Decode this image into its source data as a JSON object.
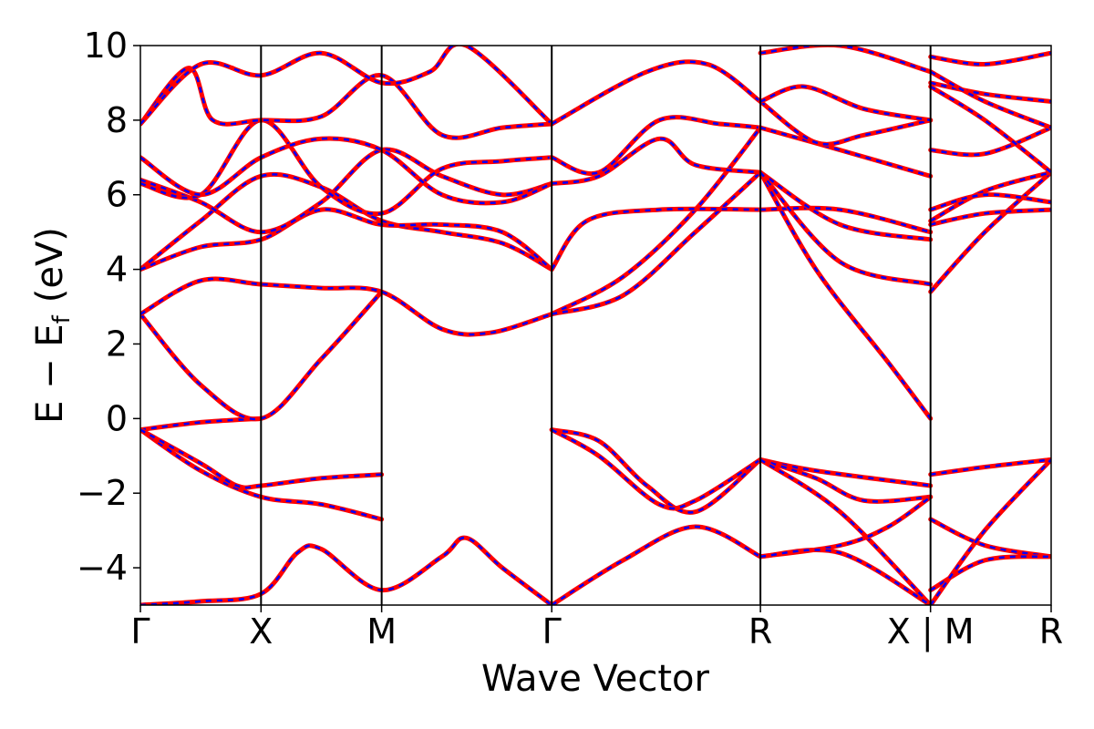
{
  "chart_data": {
    "type": "line",
    "xlabel": "Wave Vector",
    "ylabel": "E − Eₑ (eV)",
    "ylabel_parts": {
      "main": "E − E",
      "sub": "f",
      "unit": "(eV)"
    },
    "ylim": [
      -5,
      10
    ],
    "yticks": [
      -4,
      -2,
      0,
      2,
      4,
      6,
      8,
      10
    ],
    "ytick_labels": [
      "−4",
      "−2",
      "0",
      "2",
      "4",
      "6",
      "8",
      "10"
    ],
    "kpoints": [
      {
        "label": "Γ",
        "x": 0
      },
      {
        "label": "X",
        "x": 1
      },
      {
        "label": "M",
        "x": 2
      },
      {
        "label": "Γ",
        "x": 3.41
      },
      {
        "label": "R",
        "x": 5.14
      },
      {
        "label": "X | M",
        "x": 6.55
      },
      {
        "label": "R",
        "x": 7.55
      }
    ],
    "xlim": [
      0,
      7.55
    ],
    "colors": {
      "series_a": "#ff0000",
      "series_b": "#0000ff",
      "frame": "#000000"
    },
    "series": [
      {
        "values": [
          [
            0,
            -0.3
          ],
          [
            0.5,
            -0.1
          ],
          [
            1,
            0.0
          ]
        ]
      },
      {
        "values": [
          [
            0,
            -0.3
          ],
          [
            0.5,
            -1.4
          ],
          [
            1,
            -2.1
          ],
          [
            1.5,
            -2.3
          ],
          [
            2,
            -2.7
          ]
        ]
      },
      {
        "values": [
          [
            0,
            -0.3
          ],
          [
            0.5,
            -1.2
          ],
          [
            0.8,
            -1.8
          ],
          [
            1,
            -1.8
          ],
          [
            1.5,
            -1.6
          ],
          [
            2,
            -1.5
          ]
        ]
      },
      {
        "values": [
          [
            0,
            -5.0
          ],
          [
            0.5,
            -4.9
          ],
          [
            1,
            -4.7
          ],
          [
            1.3,
            -3.6
          ],
          [
            1.5,
            -3.5
          ],
          [
            2,
            -4.6
          ],
          [
            2.5,
            -3.7
          ],
          [
            2.7,
            -3.2
          ],
          [
            3,
            -4.0
          ],
          [
            3.41,
            -5.0
          ]
        ]
      },
      {
        "values": [
          [
            0,
            2.8
          ],
          [
            0.5,
            0.9
          ],
          [
            1,
            0.0
          ],
          [
            1.5,
            1.6
          ],
          [
            2,
            3.4
          ]
        ]
      },
      {
        "values": [
          [
            0,
            2.8
          ],
          [
            0.5,
            3.7
          ],
          [
            1,
            3.6
          ],
          [
            1.5,
            3.5
          ],
          [
            2,
            3.4
          ],
          [
            2.5,
            2.4
          ],
          [
            2.9,
            2.3
          ],
          [
            3.41,
            2.8
          ]
        ]
      },
      {
        "values": [
          [
            0,
            4.0
          ],
          [
            0.5,
            5.3
          ],
          [
            1,
            6.5
          ],
          [
            1.5,
            6.2
          ],
          [
            2,
            5.3
          ],
          [
            2.5,
            5.0
          ],
          [
            3,
            4.7
          ],
          [
            3.41,
            4.0
          ]
        ]
      },
      {
        "values": [
          [
            0,
            4.0
          ],
          [
            0.5,
            4.6
          ],
          [
            1,
            4.8
          ],
          [
            1.5,
            5.6
          ],
          [
            2,
            5.2
          ],
          [
            2.5,
            5.2
          ],
          [
            3,
            5.0
          ],
          [
            3.41,
            4.0
          ]
        ]
      },
      {
        "values": [
          [
            0,
            6.4
          ],
          [
            0.5,
            5.8
          ],
          [
            1,
            5.0
          ],
          [
            1.5,
            5.8
          ],
          [
            2,
            7.2
          ],
          [
            2.5,
            6.5
          ],
          [
            3,
            6.0
          ],
          [
            3.41,
            6.3
          ]
        ]
      },
      {
        "values": [
          [
            0,
            6.3
          ],
          [
            0.5,
            6.0
          ],
          [
            1,
            8.0
          ],
          [
            1.5,
            6.2
          ],
          [
            2,
            5.5
          ],
          [
            2.5,
            6.7
          ],
          [
            3,
            6.9
          ],
          [
            3.41,
            7.0
          ]
        ]
      },
      {
        "values": [
          [
            0,
            7.0
          ],
          [
            0.5,
            6.0
          ],
          [
            1,
            7.0
          ],
          [
            1.5,
            7.5
          ],
          [
            2,
            7.2
          ],
          [
            2.5,
            6.0
          ],
          [
            3,
            5.8
          ],
          [
            3.41,
            6.3
          ]
        ]
      },
      {
        "values": [
          [
            0,
            7.9
          ],
          [
            0.4,
            9.4
          ],
          [
            0.6,
            8.0
          ],
          [
            1,
            8.0
          ],
          [
            1.5,
            8.1
          ],
          [
            2,
            9.2
          ],
          [
            2.5,
            7.6
          ],
          [
            3,
            7.8
          ],
          [
            3.41,
            7.9
          ]
        ]
      },
      {
        "values": [
          [
            0,
            7.9
          ],
          [
            0.5,
            9.5
          ],
          [
            1,
            9.2
          ],
          [
            1.5,
            9.8
          ],
          [
            2,
            9.0
          ],
          [
            2.4,
            9.3
          ],
          [
            2.7,
            10.0
          ],
          [
            3.41,
            7.9
          ]
        ]
      },
      {
        "values": [
          [
            3.41,
            -0.3
          ],
          [
            3.8,
            -0.6
          ],
          [
            4.2,
            -1.8
          ],
          [
            4.6,
            -2.5
          ],
          [
            5.14,
            -1.1
          ]
        ]
      },
      {
        "values": [
          [
            3.41,
            -0.3
          ],
          [
            3.8,
            -1.0
          ],
          [
            4.3,
            -2.3
          ],
          [
            4.6,
            -2.2
          ],
          [
            5.14,
            -1.1
          ]
        ]
      },
      {
        "values": [
          [
            3.41,
            -5.0
          ],
          [
            4.0,
            -3.8
          ],
          [
            4.6,
            -2.9
          ],
          [
            5.14,
            -3.7
          ]
        ]
      },
      {
        "values": [
          [
            3.41,
            2.8
          ],
          [
            4.0,
            3.8
          ],
          [
            4.6,
            5.6
          ],
          [
            5.14,
            7.8
          ]
        ]
      },
      {
        "values": [
          [
            3.41,
            2.8
          ],
          [
            4.0,
            3.3
          ],
          [
            4.6,
            5.0
          ],
          [
            5.14,
            6.6
          ]
        ]
      },
      {
        "values": [
          [
            3.41,
            4.0
          ],
          [
            3.7,
            5.3
          ],
          [
            4.3,
            5.6
          ],
          [
            5.14,
            5.6
          ]
        ]
      },
      {
        "values": [
          [
            3.41,
            6.3
          ],
          [
            3.8,
            6.5
          ],
          [
            4.3,
            7.5
          ],
          [
            4.6,
            6.8
          ],
          [
            5.14,
            6.6
          ]
        ]
      },
      {
        "values": [
          [
            3.41,
            7.0
          ],
          [
            3.8,
            6.6
          ],
          [
            4.3,
            8.0
          ],
          [
            4.8,
            7.9
          ],
          [
            5.14,
            7.8
          ]
        ]
      },
      {
        "values": [
          [
            3.41,
            7.9
          ],
          [
            4.2,
            9.3
          ],
          [
            4.7,
            9.5
          ],
          [
            5.14,
            8.5
          ]
        ]
      },
      {
        "values": [
          [
            5.14,
            -1.1
          ],
          [
            5.6,
            -1.4
          ],
          [
            6.55,
            -1.8
          ]
        ]
      },
      {
        "values": [
          [
            5.14,
            -1.1
          ],
          [
            5.6,
            -1.6
          ],
          [
            6.0,
            -2.2
          ],
          [
            6.55,
            -2.1
          ]
        ]
      },
      {
        "values": [
          [
            5.14,
            -1.1
          ],
          [
            5.8,
            -2.5
          ],
          [
            6.55,
            -5.0
          ]
        ]
      },
      {
        "values": [
          [
            5.14,
            -3.7
          ],
          [
            5.8,
            -3.4
          ],
          [
            6.2,
            -2.9
          ],
          [
            6.55,
            -2.1
          ]
        ]
      },
      {
        "values": [
          [
            5.14,
            -3.7
          ],
          [
            5.8,
            -3.6
          ],
          [
            6.55,
            -5.0
          ]
        ]
      },
      {
        "values": [
          [
            5.14,
            6.6
          ],
          [
            5.6,
            4.0
          ],
          [
            6.2,
            1.5
          ],
          [
            6.55,
            0.0
          ]
        ]
      },
      {
        "values": [
          [
            5.14,
            5.6
          ],
          [
            5.8,
            5.6
          ],
          [
            6.55,
            5.0
          ]
        ]
      },
      {
        "values": [
          [
            5.14,
            6.6
          ],
          [
            5.8,
            5.2
          ],
          [
            6.55,
            4.8
          ]
        ]
      },
      {
        "values": [
          [
            5.14,
            6.6
          ],
          [
            5.8,
            4.2
          ],
          [
            6.55,
            3.6
          ]
        ]
      },
      {
        "values": [
          [
            5.14,
            7.8
          ],
          [
            5.8,
            7.2
          ],
          [
            6.55,
            6.5
          ]
        ]
      },
      {
        "values": [
          [
            5.14,
            8.5
          ],
          [
            5.6,
            7.4
          ],
          [
            6.0,
            7.6
          ],
          [
            6.55,
            8.0
          ]
        ]
      },
      {
        "values": [
          [
            5.14,
            8.5
          ],
          [
            5.5,
            8.9
          ],
          [
            6.0,
            8.3
          ],
          [
            6.55,
            8.0
          ]
        ]
      },
      {
        "values": [
          [
            5.14,
            9.8
          ],
          [
            5.8,
            10.0
          ],
          [
            6.55,
            9.3
          ]
        ]
      },
      {
        "values": [
          [
            6.55,
            -1.5
          ],
          [
            7.0,
            -1.3
          ],
          [
            7.55,
            -1.1
          ]
        ]
      },
      {
        "values": [
          [
            6.55,
            -2.7
          ],
          [
            7.0,
            -3.4
          ],
          [
            7.55,
            -3.7
          ]
        ]
      },
      {
        "values": [
          [
            6.55,
            -4.6
          ],
          [
            7.0,
            -3.8
          ],
          [
            7.55,
            -3.7
          ]
        ]
      },
      {
        "values": [
          [
            6.55,
            -5.0
          ],
          [
            7.0,
            -3.0
          ],
          [
            7.55,
            -1.1
          ]
        ]
      },
      {
        "values": [
          [
            6.55,
            3.4
          ],
          [
            7.0,
            5.0
          ],
          [
            7.55,
            6.6
          ]
        ]
      },
      {
        "values": [
          [
            6.55,
            5.2
          ],
          [
            7.0,
            5.5
          ],
          [
            7.55,
            5.6
          ]
        ]
      },
      {
        "values": [
          [
            6.55,
            5.3
          ],
          [
            7.0,
            6.1
          ],
          [
            7.55,
            6.6
          ]
        ]
      },
      {
        "values": [
          [
            6.55,
            5.6
          ],
          [
            7.0,
            6.0
          ],
          [
            7.55,
            5.8
          ]
        ]
      },
      {
        "values": [
          [
            6.55,
            7.2
          ],
          [
            7.0,
            7.1
          ],
          [
            7.55,
            7.8
          ]
        ]
      },
      {
        "values": [
          [
            6.55,
            8.9
          ],
          [
            7.0,
            8.0
          ],
          [
            7.55,
            6.6
          ]
        ]
      },
      {
        "values": [
          [
            6.55,
            9.0
          ],
          [
            7.0,
            8.7
          ],
          [
            7.55,
            8.5
          ]
        ]
      },
      {
        "values": [
          [
            6.55,
            9.7
          ],
          [
            7.0,
            9.5
          ],
          [
            7.55,
            9.8
          ]
        ]
      },
      {
        "values": [
          [
            6.55,
            9.3
          ],
          [
            7.0,
            8.5
          ],
          [
            7.55,
            7.8
          ]
        ]
      }
    ]
  }
}
